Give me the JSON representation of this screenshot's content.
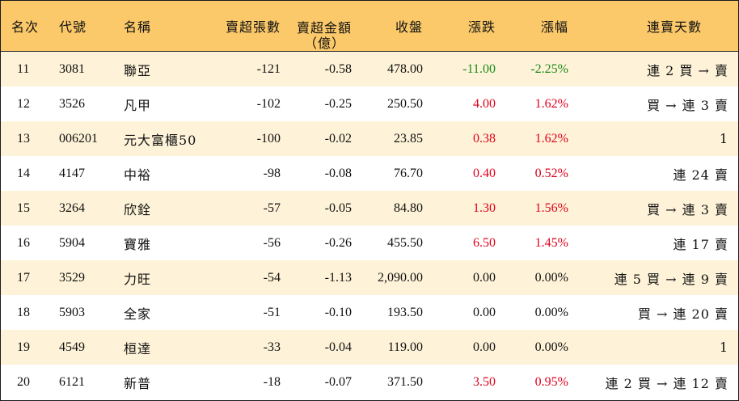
{
  "header": {
    "rank": "名次",
    "code": "代號",
    "name": "名稱",
    "net_sell_volume": "賣超張數",
    "net_sell_amount_line1": "賣超金額",
    "net_sell_amount_line2": "（億）",
    "close": "收盤",
    "change": "漲跌",
    "change_pct": "漲幅",
    "consecutive_days": "連賣天數"
  },
  "colors": {
    "header_bg": "#fbc96a",
    "alt_row_bg": "#fef3d8",
    "up": "#e0001c",
    "down": "#1a8a1a"
  },
  "rows": [
    {
      "rank": "11",
      "code": "3081",
      "name": "聯亞",
      "volume": "-121",
      "amount": "-0.58",
      "close": "478.00",
      "change": "-11.00",
      "pct": "-2.25%",
      "days": "連 2 買 → 賣",
      "trend": "down"
    },
    {
      "rank": "12",
      "code": "3526",
      "name": "凡甲",
      "volume": "-102",
      "amount": "-0.25",
      "close": "250.50",
      "change": "4.00",
      "pct": "1.62%",
      "days": "買 → 連 3 賣",
      "trend": "up"
    },
    {
      "rank": "13",
      "code": "006201",
      "name": "元大富櫃50",
      "volume": "-100",
      "amount": "-0.02",
      "close": "23.85",
      "change": "0.38",
      "pct": "1.62%",
      "days": "1",
      "trend": "up"
    },
    {
      "rank": "14",
      "code": "4147",
      "name": "中裕",
      "volume": "-98",
      "amount": "-0.08",
      "close": "76.70",
      "change": "0.40",
      "pct": "0.52%",
      "days": "連 24 賣",
      "trend": "up"
    },
    {
      "rank": "15",
      "code": "3264",
      "name": "欣銓",
      "volume": "-57",
      "amount": "-0.05",
      "close": "84.80",
      "change": "1.30",
      "pct": "1.56%",
      "days": "買 → 連 3 賣",
      "trend": "up"
    },
    {
      "rank": "16",
      "code": "5904",
      "name": "寶雅",
      "volume": "-56",
      "amount": "-0.26",
      "close": "455.50",
      "change": "6.50",
      "pct": "1.45%",
      "days": "連 17 賣",
      "trend": "up"
    },
    {
      "rank": "17",
      "code": "3529",
      "name": "力旺",
      "volume": "-54",
      "amount": "-1.13",
      "close": "2,090.00",
      "change": "0.00",
      "pct": "0.00%",
      "days": "連 5 買 → 連 9 賣",
      "trend": "flat"
    },
    {
      "rank": "18",
      "code": "5903",
      "name": "全家",
      "volume": "-51",
      "amount": "-0.10",
      "close": "193.50",
      "change": "0.00",
      "pct": "0.00%",
      "days": "買 → 連 20 賣",
      "trend": "flat"
    },
    {
      "rank": "19",
      "code": "4549",
      "name": "桓達",
      "volume": "-33",
      "amount": "-0.04",
      "close": "119.00",
      "change": "0.00",
      "pct": "0.00%",
      "days": "1",
      "trend": "flat"
    },
    {
      "rank": "20",
      "code": "6121",
      "name": "新普",
      "volume": "-18",
      "amount": "-0.07",
      "close": "371.50",
      "change": "3.50",
      "pct": "0.95%",
      "days": "連 2 買 → 連 12 賣",
      "trend": "up"
    }
  ]
}
